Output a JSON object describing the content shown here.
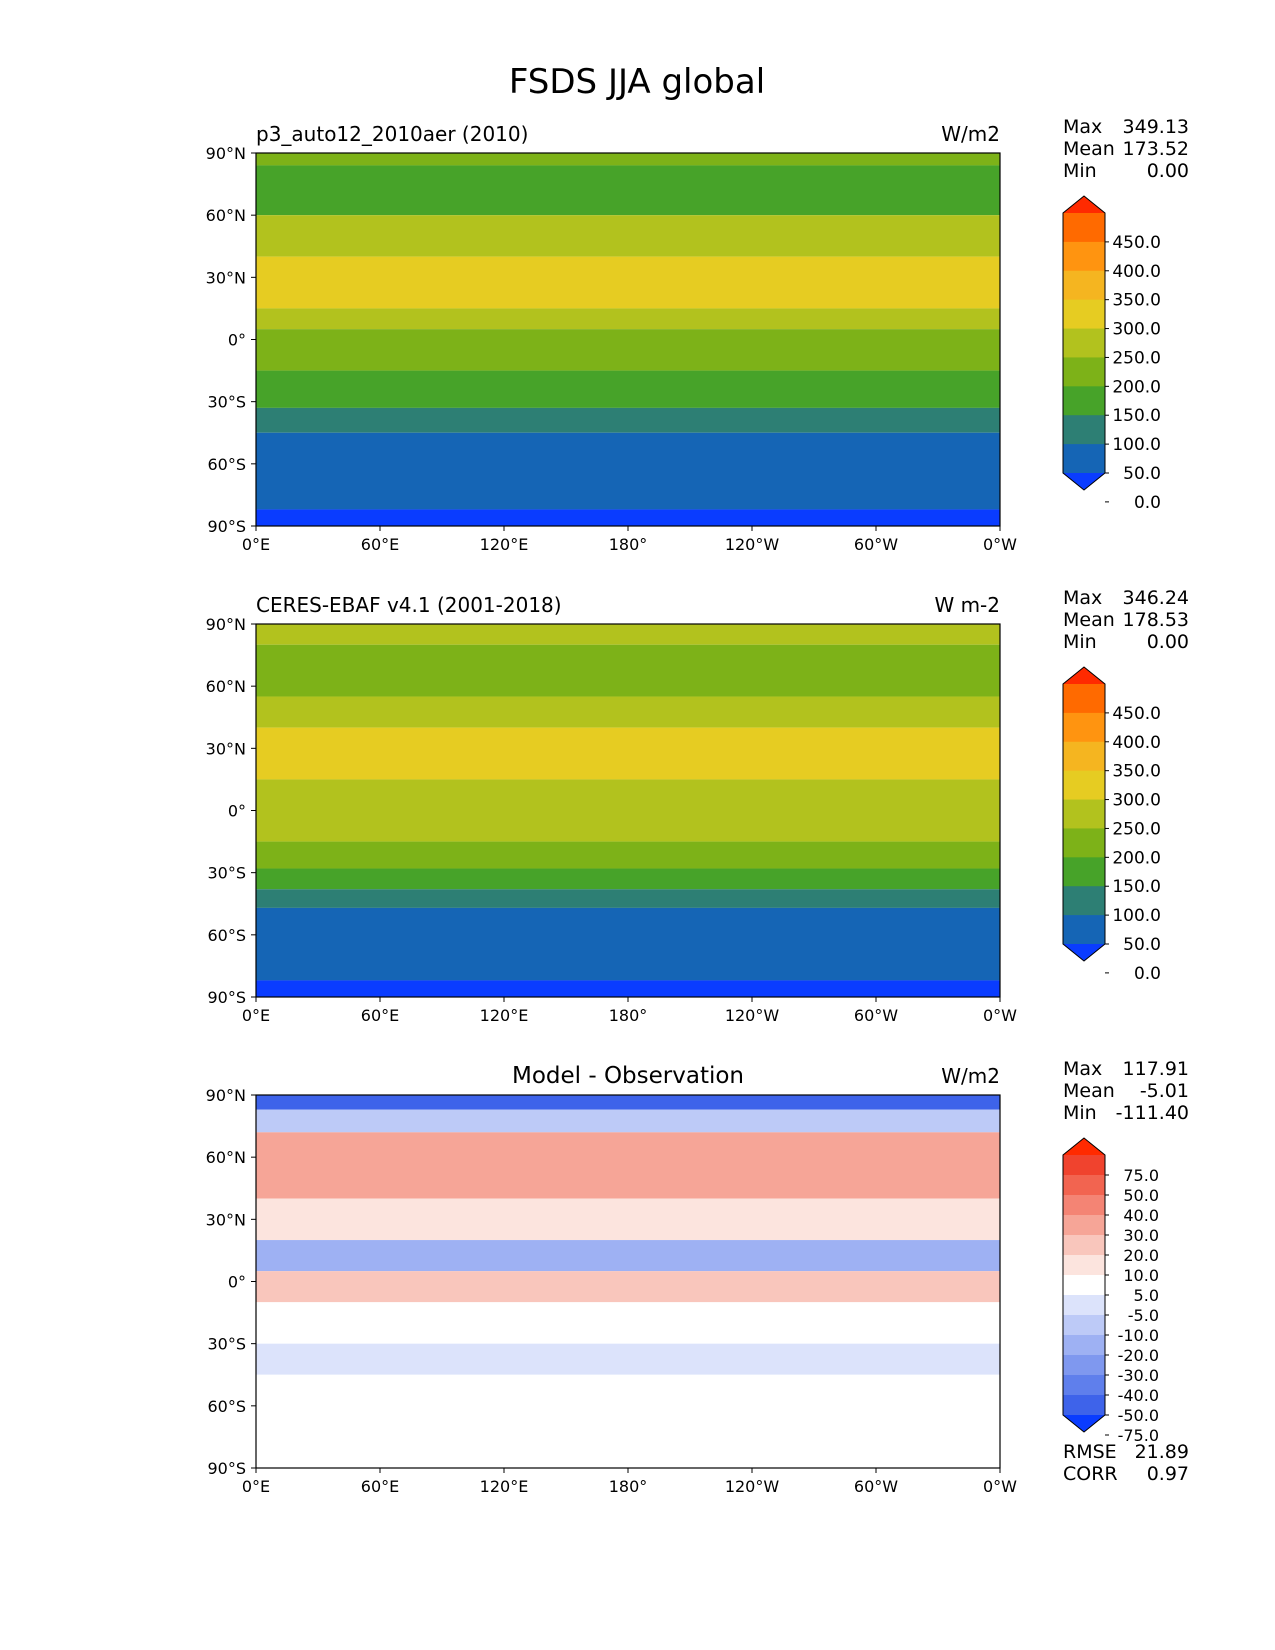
{
  "figure": {
    "title": "FSDS JJA global"
  },
  "chart_data": [
    {
      "type": "heatmap",
      "id": "model",
      "title_left": "p3_auto12_2010aer (2010)",
      "title_center": "",
      "units": "W/m2",
      "lat_ticks": [
        "90°N",
        "60°N",
        "30°N",
        "0°",
        "30°S",
        "60°S",
        "90°S"
      ],
      "lon_ticks": [
        "0°E",
        "60°E",
        "120°E",
        "180°",
        "120°W",
        "60°W",
        "0°W"
      ],
      "stats": [
        {
          "label": "Max",
          "value": "349.13"
        },
        {
          "label": "Mean",
          "value": "173.52"
        },
        {
          "label": "Min",
          "value": "0.00"
        }
      ],
      "extra_stats": [],
      "colorbar": {
        "levels": [
          "450.0",
          "400.0",
          "350.0",
          "300.0",
          "250.0",
          "200.0",
          "150.0",
          "100.0",
          "50.0",
          "0.0"
        ],
        "colors": [
          "#ff2a00",
          "#ff6a00",
          "#ff9410",
          "#f5b520",
          "#e6cc22",
          "#b2c21e",
          "#7db218",
          "#47a329",
          "#2d7f74",
          "#1565b5",
          "#0a3cff"
        ]
      },
      "zonal_bands": [
        {
          "lat": [
            90,
            84
          ],
          "color": "#7db218"
        },
        {
          "lat": [
            84,
            60
          ],
          "color": "#47a329"
        },
        {
          "lat": [
            60,
            40
          ],
          "color": "#b2c21e"
        },
        {
          "lat": [
            40,
            15
          ],
          "color": "#e6cc22"
        },
        {
          "lat": [
            15,
            5
          ],
          "color": "#b2c21e"
        },
        {
          "lat": [
            5,
            -15
          ],
          "color": "#7db218"
        },
        {
          "lat": [
            -15,
            -33
          ],
          "color": "#47a329"
        },
        {
          "lat": [
            -33,
            -45
          ],
          "color": "#2d7f74"
        },
        {
          "lat": [
            -45,
            -82
          ],
          "color": "#1565b5"
        },
        {
          "lat": [
            -82,
            -90
          ],
          "color": "#0a3cff"
        }
      ]
    },
    {
      "type": "heatmap",
      "id": "obs",
      "title_left": "CERES-EBAF v4.1 (2001-2018)",
      "title_center": "",
      "units": "W m-2",
      "lat_ticks": [
        "90°N",
        "60°N",
        "30°N",
        "0°",
        "30°S",
        "60°S",
        "90°S"
      ],
      "lon_ticks": [
        "0°E",
        "60°E",
        "120°E",
        "180°",
        "120°W",
        "60°W",
        "0°W"
      ],
      "stats": [
        {
          "label": "Max",
          "value": "346.24"
        },
        {
          "label": "Mean",
          "value": "178.53"
        },
        {
          "label": "Min",
          "value": "0.00"
        }
      ],
      "extra_stats": [],
      "colorbar": {
        "levels": [
          "450.0",
          "400.0",
          "350.0",
          "300.0",
          "250.0",
          "200.0",
          "150.0",
          "100.0",
          "50.0",
          "0.0"
        ],
        "colors": [
          "#ff2a00",
          "#ff6a00",
          "#ff9410",
          "#f5b520",
          "#e6cc22",
          "#b2c21e",
          "#7db218",
          "#47a329",
          "#2d7f74",
          "#1565b5",
          "#0a3cff"
        ]
      },
      "zonal_bands": [
        {
          "lat": [
            90,
            80
          ],
          "color": "#b2c21e"
        },
        {
          "lat": [
            80,
            55
          ],
          "color": "#7db218"
        },
        {
          "lat": [
            55,
            40
          ],
          "color": "#b2c21e"
        },
        {
          "lat": [
            40,
            15
          ],
          "color": "#e6cc22"
        },
        {
          "lat": [
            15,
            -15
          ],
          "color": "#b2c21e"
        },
        {
          "lat": [
            -15,
            -28
          ],
          "color": "#7db218"
        },
        {
          "lat": [
            -28,
            -38
          ],
          "color": "#47a329"
        },
        {
          "lat": [
            -38,
            -47
          ],
          "color": "#2d7f74"
        },
        {
          "lat": [
            -47,
            -82
          ],
          "color": "#1565b5"
        },
        {
          "lat": [
            -82,
            -90
          ],
          "color": "#0a3cff"
        }
      ]
    },
    {
      "type": "heatmap",
      "id": "diff",
      "title_left": "",
      "title_center": "Model - Observation",
      "units": "W/m2",
      "lat_ticks": [
        "90°N",
        "60°N",
        "30°N",
        "0°",
        "30°S",
        "60°S",
        "90°S"
      ],
      "lon_ticks": [
        "0°E",
        "60°E",
        "120°E",
        "180°",
        "120°W",
        "60°W",
        "0°W"
      ],
      "stats": [
        {
          "label": "Max",
          "value": "117.91"
        },
        {
          "label": "Mean",
          "value": "-5.01"
        },
        {
          "label": "Min",
          "value": "-111.40"
        }
      ],
      "extra_stats": [
        {
          "label": "RMSE",
          "value": "21.89"
        },
        {
          "label": "CORR",
          "value": "0.97"
        }
      ],
      "colorbar": {
        "levels": [
          "75.0",
          "50.0",
          "40.0",
          "30.0",
          "20.0",
          "10.0",
          "5.0",
          "-5.0",
          "-10.0",
          "-20.0",
          "-30.0",
          "-40.0",
          "-50.0",
          "-75.0"
        ],
        "colors": [
          "#ff2a00",
          "#f0432e",
          "#f26450",
          "#f48474",
          "#f6a597",
          "#f9c6bc",
          "#fce4de",
          "#ffffff",
          "#dce3fb",
          "#bdcaf7",
          "#9eb1f3",
          "#7f98ef",
          "#5f7fec",
          "#3e63ea",
          "#0a3cff"
        ]
      },
      "zonal_bands": [
        {
          "lat": [
            90,
            83
          ],
          "color": "#3e63ea"
        },
        {
          "lat": [
            83,
            72
          ],
          "color": "#bdcaf7"
        },
        {
          "lat": [
            72,
            40
          ],
          "color": "#f6a597"
        },
        {
          "lat": [
            40,
            20
          ],
          "color": "#fce4de"
        },
        {
          "lat": [
            20,
            5
          ],
          "color": "#9eb1f3"
        },
        {
          "lat": [
            5,
            -10
          ],
          "color": "#f9c6bc"
        },
        {
          "lat": [
            -10,
            -30
          ],
          "color": "#ffffff"
        },
        {
          "lat": [
            -30,
            -45
          ],
          "color": "#dce3fb"
        },
        {
          "lat": [
            -45,
            -90
          ],
          "color": "#ffffff"
        }
      ]
    }
  ]
}
